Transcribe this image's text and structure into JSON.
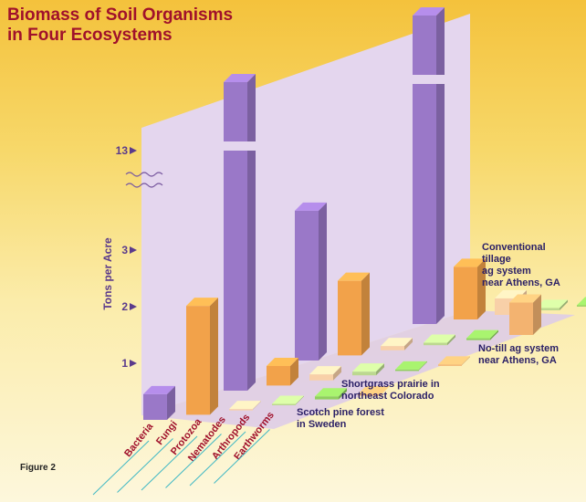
{
  "title_lines": [
    "Biomass of Soil Organisms",
    "in Four Ecosystems"
  ],
  "figure_label": "Figure 2",
  "colors": {
    "bacteria": "#9a78c8",
    "fungi": "#f2a24a",
    "protozoa": "#f8d0a8",
    "nematodes": "#bcd890",
    "arthropods": "#8fcf5e",
    "earthworms": "#f3b370",
    "wall": "#e4d6ee",
    "floor": "#dccaea",
    "label_text": "#2a1f66",
    "axis_text": "#5a3a8c",
    "category_text": "#a0112b"
  },
  "chart_data": {
    "type": "bar",
    "title": "Biomass of Soil Organisms in Four Ecosystems",
    "ylabel": "Tons per Acre",
    "y_ticks": [
      "1",
      "2",
      "3",
      "13"
    ],
    "y_axis_break": "between 3 and 13",
    "categories": [
      "Bacteria",
      "Fungi",
      "Protozoa",
      "Nematodes",
      "Arthropods",
      "Earthworms"
    ],
    "series": [
      {
        "name": "Scotch pine forest in Sweden",
        "label_lines": [
          "Scotch pine forest",
          "in Sweden"
        ],
        "values": [
          0.42,
          1.78,
          0.01,
          0.01,
          0.05,
          0.0
        ]
      },
      {
        "name": "Shortgrass prairie in northeast Colorado",
        "label_lines": [
          "Shortgrass prairie in",
          "northeast Colorado"
        ],
        "values": [
          13.0,
          0.32,
          0.1,
          0.06,
          0.01,
          0.01
        ]
      },
      {
        "name": "No-till ag system near Athens, GA",
        "label_lines": [
          "No-till ag system",
          "near Athens, GA"
        ],
        "values": [
          2.45,
          1.22,
          0.07,
          0.04,
          0.03,
          0.53
        ]
      },
      {
        "name": "Conventional tillage ag system near Athens, GA",
        "label_lines": [
          "Conventional",
          "tillage",
          "ag system",
          "near Athens, GA"
        ],
        "values": [
          13.0,
          0.86,
          0.27,
          0.04,
          0.01,
          0.12
        ]
      }
    ],
    "grid": false,
    "legend": "labels at right of each row"
  }
}
